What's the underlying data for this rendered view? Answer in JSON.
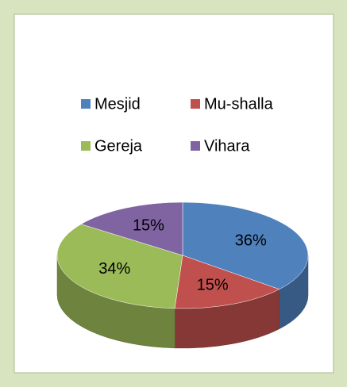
{
  "chart_data": {
    "type": "pie",
    "categories": [
      "Mesjid",
      "Mu-shalla",
      "Gereja",
      "Vihara"
    ],
    "values": [
      36,
      15,
      34,
      15
    ],
    "value_labels": [
      "36%",
      "15%",
      "34%",
      "15%"
    ],
    "colors": [
      "#4f81bd",
      "#c0504d",
      "#9bbb59",
      "#8064a2"
    ],
    "legend": "top"
  }
}
